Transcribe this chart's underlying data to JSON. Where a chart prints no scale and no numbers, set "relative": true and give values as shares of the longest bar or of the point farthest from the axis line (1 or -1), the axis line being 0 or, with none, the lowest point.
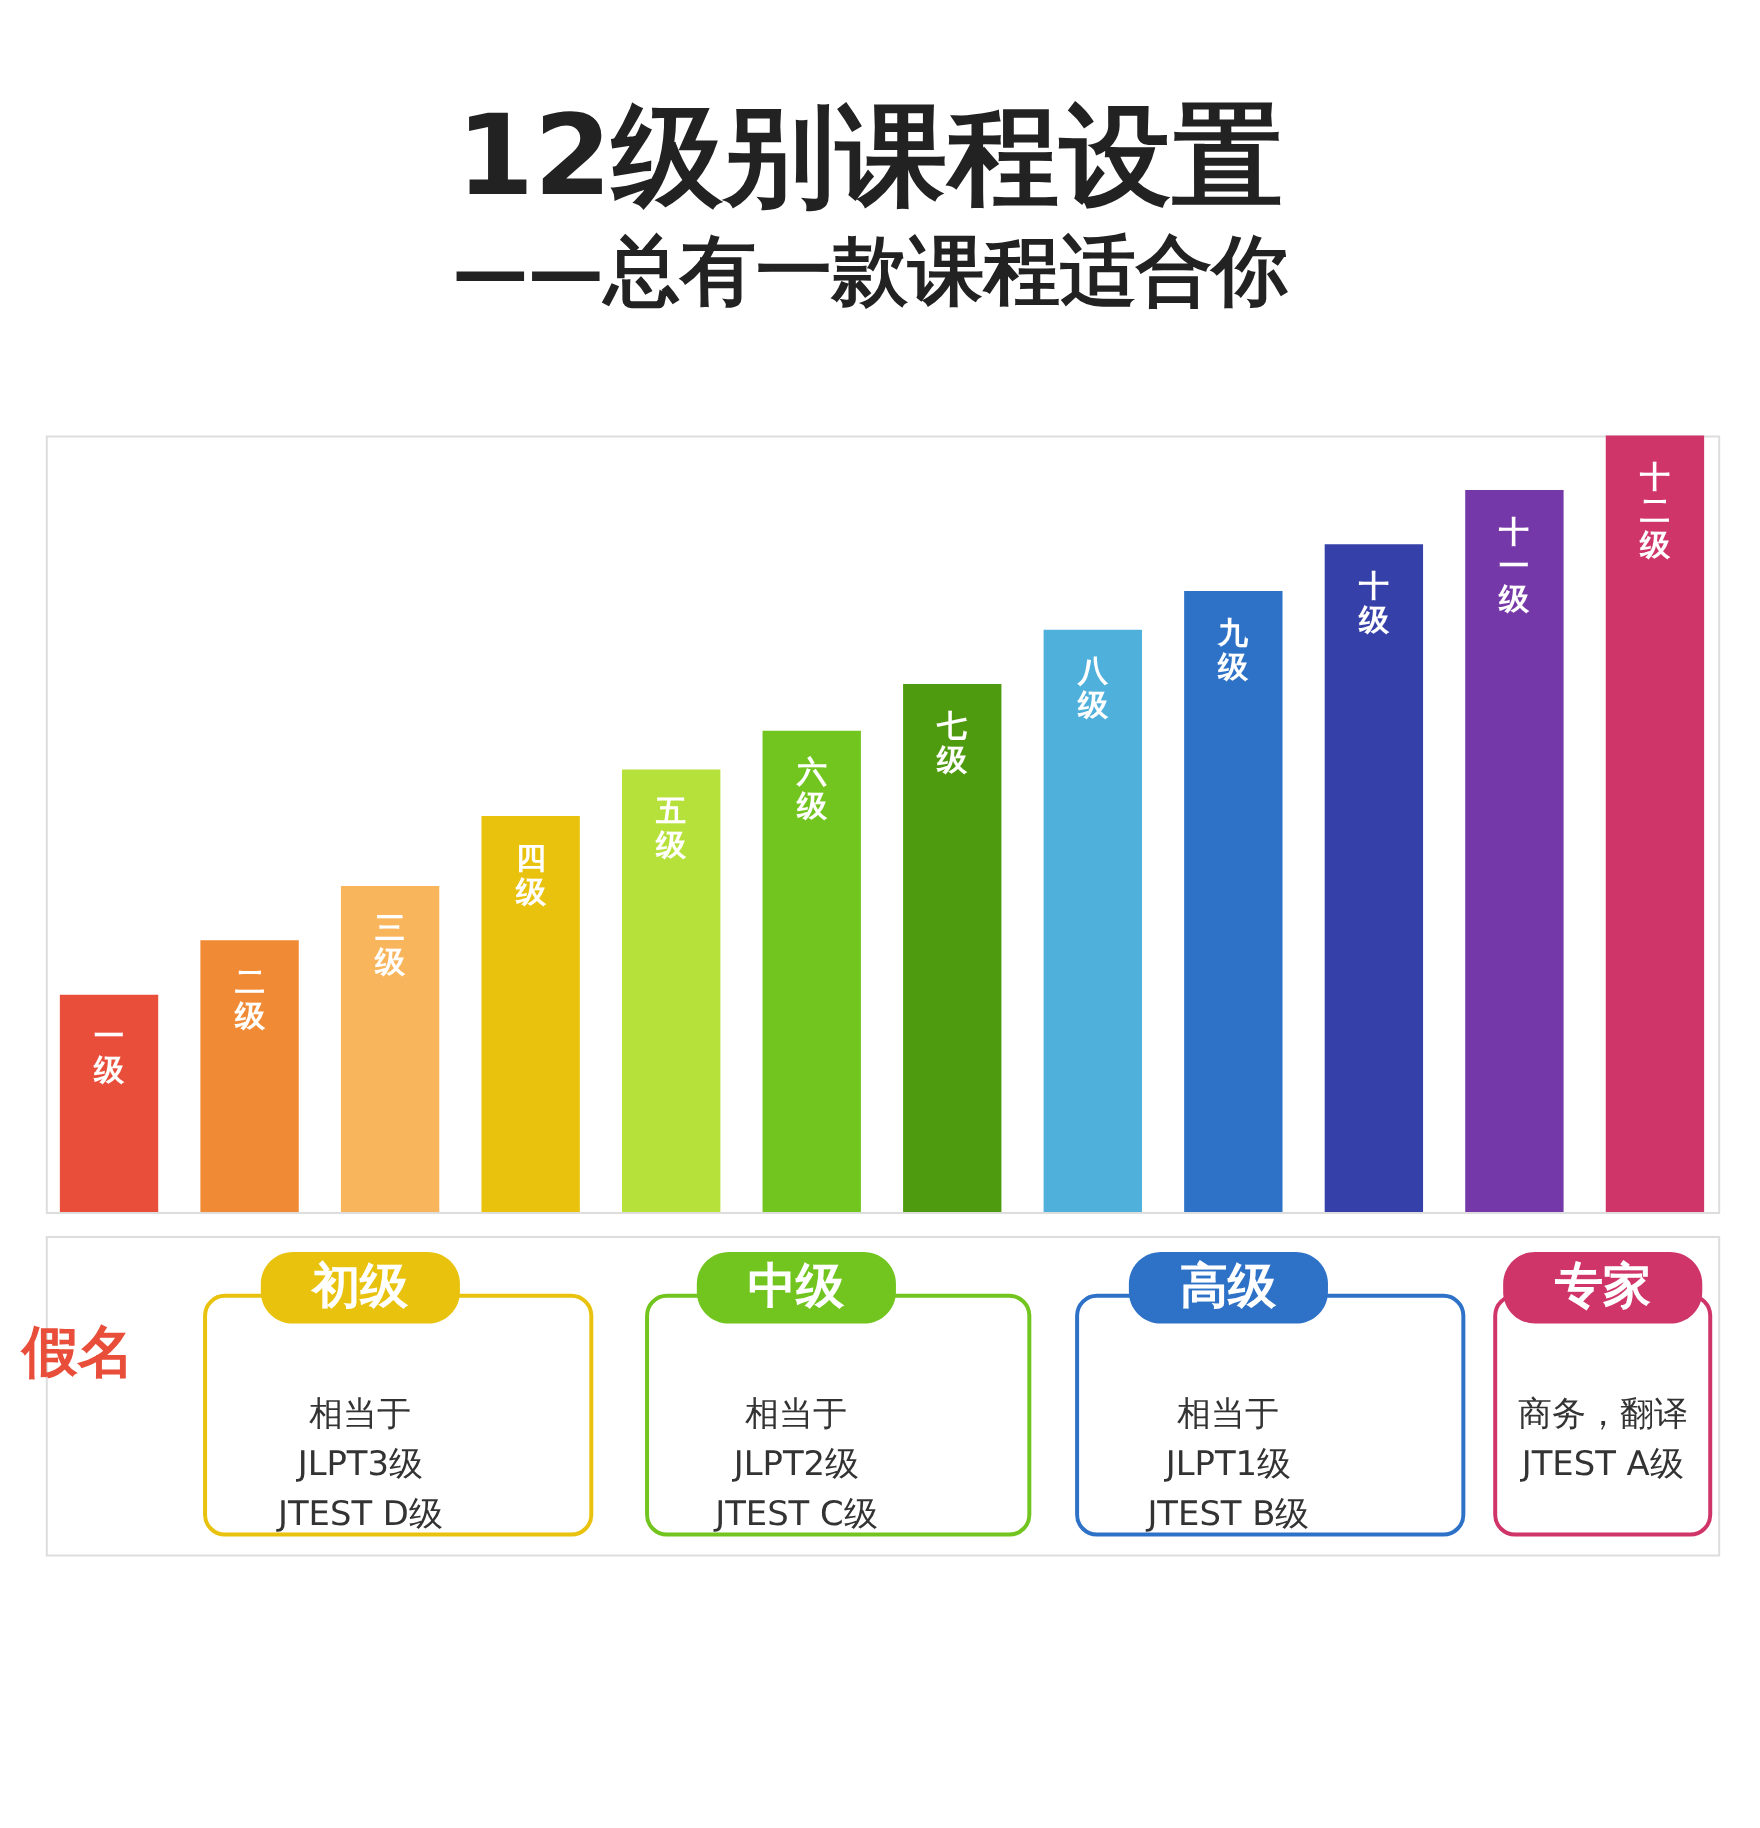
{
  "chart_data": {
    "type": "bar",
    "title": "12级别课程设置",
    "subtitle": "——总有一款课程适合你",
    "categories": [
      "一级",
      "二级",
      "三级",
      "四级",
      "五级",
      "六级",
      "七级",
      "八级",
      "九级",
      "十级",
      "十一级",
      "十二级"
    ],
    "values": [
      0.28,
      0.35,
      0.42,
      0.51,
      0.57,
      0.62,
      0.68,
      0.75,
      0.8,
      0.86,
      0.93,
      1
    ],
    "colors": [
      "#e94e3a",
      "#f08a35",
      "#f9b55b",
      "#e8c20d",
      "#b6e03a",
      "#72c51e",
      "#4f9b0f",
      "#4fb0dc",
      "#2e72c8",
      "#3540a8",
      "#7538a8",
      "#cf3568"
    ],
    "relative": true,
    "annotations": [
      "假名",
      "初级",
      "相当于\nJLPT3级\nJTEST D级",
      "中级",
      "相当于\nJLPT2级\nJTEST C级",
      "高级",
      "相当于\nJLPT1级\nJTEST B级",
      "专家",
      "商务，翻译\nJTEST A级"
    ]
  }
}
